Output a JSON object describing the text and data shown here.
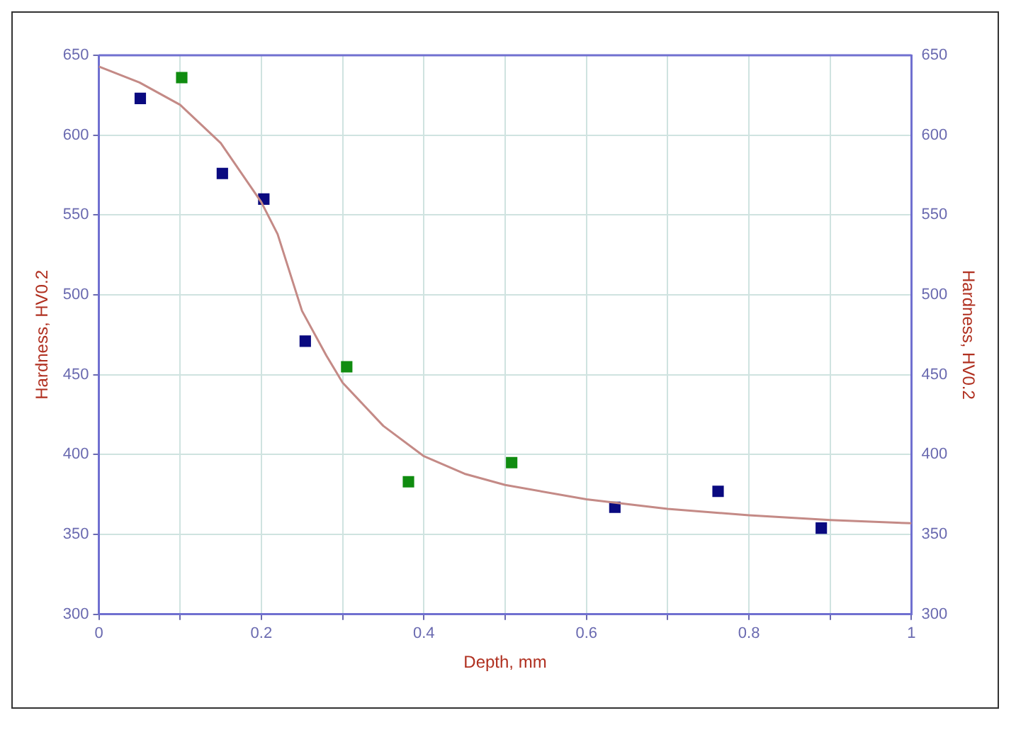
{
  "chart_data": {
    "type": "scatter",
    "xlabel": "Depth, mm",
    "ylabel": "Hardness, HV0.2",
    "y2label": "Hardness, HV0.2",
    "xlim": [
      0,
      1
    ],
    "xticks": [
      0,
      {
        "value": 0.1,
        "label": null
      },
      0.2,
      {
        "value": 0.3,
        "label": null
      },
      0.4,
      {
        "value": 0.5,
        "label": null
      },
      0.6,
      {
        "value": 0.7,
        "label": null
      },
      0.8,
      {
        "value": 0.9,
        "label": null
      },
      1
    ],
    "ylim": [
      300,
      650
    ],
    "yticks": [
      300,
      350,
      400,
      450,
      500,
      550,
      600,
      650
    ],
    "y2lim": [
      300,
      650
    ],
    "y2ticks": [
      300,
      350,
      400,
      450,
      500,
      550,
      600,
      650
    ],
    "grid": true,
    "legend": false,
    "marker": "square",
    "series": [
      {
        "type": "line",
        "color": "#c48a86",
        "marker": "none",
        "line_style": "solid",
        "x": [
          0,
          0.05,
          0.1,
          0.15,
          0.2,
          0.22,
          0.25,
          0.28,
          0.3,
          0.35,
          0.4,
          0.45,
          0.5,
          0.6,
          0.7,
          0.8,
          0.9,
          1
        ],
        "values": [
          643,
          633,
          619,
          595,
          558,
          538,
          490,
          462,
          445,
          418,
          399,
          388,
          381,
          372,
          366,
          362,
          359,
          357
        ]
      },
      {
        "color": "#0a0a80",
        "x": [
          0.051,
          0.152,
          0.203,
          0.254,
          0.635,
          0.762,
          0.889
        ],
        "values": [
          623,
          576,
          560,
          471,
          367,
          377,
          354
        ]
      },
      {
        "color": "#108c10",
        "x": [
          0.102,
          0.305,
          0.381,
          0.508
        ],
        "values": [
          636,
          455,
          383,
          395
        ]
      }
    ]
  }
}
